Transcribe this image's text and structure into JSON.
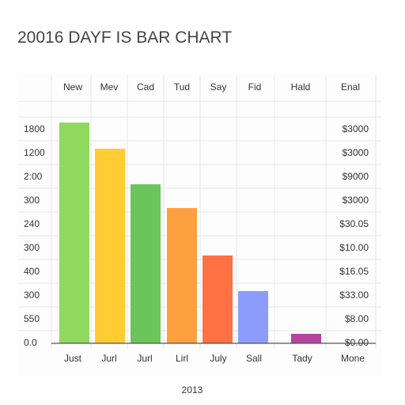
{
  "chart_data": {
    "type": "bar",
    "title": "20016 DAYF IS BAR CHART",
    "x_label": "2013",
    "top_labels": [
      "New",
      "Mev",
      "Cad",
      "Tud",
      "Say",
      "Fid",
      "Hald",
      "Enal"
    ],
    "categories": [
      "Just",
      "Jurl",
      "Jurl",
      "Lirl",
      "July",
      "Sall",
      "Tady",
      "Mone"
    ],
    "values": [
      9.3,
      8.2,
      6.7,
      5.7,
      3.7,
      2.2,
      0.4,
      null
    ],
    "colors": [
      "#8fd95f",
      "#ffcc33",
      "#6cc55a",
      "#ffa040",
      "#ff7043",
      "#8c9cfa",
      "#b5449e",
      null
    ],
    "ylim": [
      0,
      9.5
    ],
    "yticks": [
      {
        "value": 0,
        "label": "0.0"
      },
      {
        "value": 1,
        "label": "550"
      },
      {
        "value": 2,
        "label": "300"
      },
      {
        "value": 3,
        "label": "400"
      },
      {
        "value": 4,
        "label": "300"
      },
      {
        "value": 5,
        "label": "240"
      },
      {
        "value": 6,
        "label": "300"
      },
      {
        "value": 7,
        "label": "2:00"
      },
      {
        "value": 8,
        "label": "1200"
      },
      {
        "value": 9,
        "label": "1800"
      }
    ],
    "y2lim": [
      0,
      9.5
    ],
    "y2ticks": [
      {
        "value": 0,
        "label": "$0.00"
      },
      {
        "value": 1,
        "label": "$8.00"
      },
      {
        "value": 2,
        "label": "$33.00"
      },
      {
        "value": 3,
        "label": "$16.05"
      },
      {
        "value": 4,
        "label": "$10.00"
      },
      {
        "value": 5,
        "label": "$30.05"
      },
      {
        "value": 6,
        "label": "$3000"
      },
      {
        "value": 7,
        "label": "$9000"
      },
      {
        "value": 8,
        "label": "$3000"
      },
      {
        "value": 9,
        "label": "$3000"
      }
    ],
    "grid": true
  }
}
